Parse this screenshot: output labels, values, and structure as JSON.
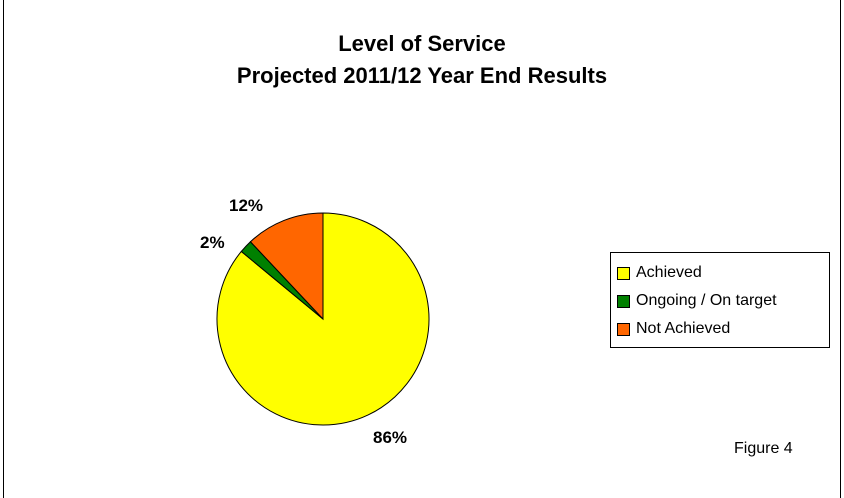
{
  "chart_data": {
    "type": "pie",
    "title": [
      "Level of Service",
      "Projected 2011/12 Year End Results"
    ],
    "slices": [
      {
        "name": "Achieved",
        "value": 86,
        "label": "86%",
        "color": "#FFFF00"
      },
      {
        "name": "Ongoing / On target",
        "value": 2,
        "label": "2%",
        "color": "#008000"
      },
      {
        "name": "Not Achieved",
        "value": 12,
        "label": "12%",
        "color": "#FF6600"
      }
    ],
    "legend_position": "right"
  },
  "footnote": "Figure 4"
}
